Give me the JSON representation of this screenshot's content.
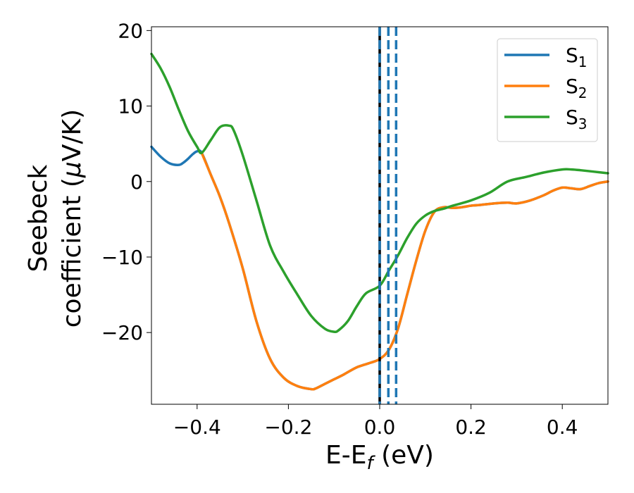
{
  "chart_data": {
    "type": "line",
    "xlabel": "E-E",
    "xlabel_sub": "f",
    "xlabel_unit": " (eV)",
    "ylabel_line1": "Seebeck",
    "ylabel_line2_pre": "coefficient  (",
    "ylabel_mu": "μ",
    "ylabel_line2_post": "V/K)",
    "xlim": [
      -0.5,
      0.5
    ],
    "ylim": [
      -29.5,
      20.5
    ],
    "xticks": [
      {
        "value": -0.4,
        "label": "−0.4"
      },
      {
        "value": -0.2,
        "label": "−0.2"
      },
      {
        "value": 0.0,
        "label": "0.0"
      },
      {
        "value": 0.2,
        "label": "0.2"
      },
      {
        "value": 0.4,
        "label": "0.4"
      }
    ],
    "yticks": [
      {
        "value": 20,
        "label": "20"
      },
      {
        "value": 10,
        "label": "10"
      },
      {
        "value": 0,
        "label": "0"
      },
      {
        "value": -10,
        "label": "−10"
      },
      {
        "value": -20,
        "label": "−20"
      }
    ],
    "legend_position": "top-right",
    "grid": false,
    "series": [
      {
        "name": "S",
        "sub": "1",
        "color": "#1f77b4",
        "x": [
          -0.5,
          -0.48,
          -0.46,
          -0.44,
          -0.43,
          -0.42,
          -0.41,
          -0.4,
          -0.39,
          -0.37,
          -0.35,
          -0.33,
          -0.3,
          -0.27,
          -0.24,
          -0.21,
          -0.18,
          -0.15,
          -0.14,
          -0.12,
          -0.1,
          -0.08,
          -0.05,
          -0.02,
          0.0,
          0.02,
          0.04,
          0.06,
          0.08,
          0.1,
          0.12,
          0.14,
          0.16,
          0.18,
          0.2,
          0.22,
          0.25,
          0.28,
          0.3,
          0.33,
          0.36,
          0.38,
          0.4,
          0.42,
          0.44,
          0.46,
          0.48,
          0.5
        ],
        "y": [
          4.6,
          3.3,
          2.4,
          2.2,
          2.5,
          3.0,
          3.6,
          4.0,
          3.8,
          0.9,
          -2.0,
          -5.5,
          -11.5,
          -18.5,
          -23.5,
          -26.0,
          -27.1,
          -27.5,
          -27.4,
          -26.8,
          -26.2,
          -25.6,
          -24.6,
          -24.0,
          -23.5,
          -22.3,
          -19.5,
          -15.0,
          -10.5,
          -6.5,
          -4.0,
          -3.4,
          -3.5,
          -3.4,
          -3.2,
          -3.1,
          -2.9,
          -2.8,
          -2.9,
          -2.5,
          -1.8,
          -1.2,
          -0.8,
          -0.9,
          -1.0,
          -0.6,
          -0.2,
          0.0
        ]
      },
      {
        "name": "S",
        "sub": "2",
        "color": "#ff7f0e",
        "x": [
          -0.39,
          -0.37,
          -0.35,
          -0.33,
          -0.3,
          -0.27,
          -0.24,
          -0.21,
          -0.18,
          -0.15,
          -0.14,
          -0.12,
          -0.1,
          -0.08,
          -0.05,
          -0.02,
          0.0,
          0.02,
          0.04,
          0.06,
          0.08,
          0.1,
          0.12,
          0.14,
          0.16,
          0.18,
          0.2,
          0.22,
          0.25,
          0.28,
          0.3,
          0.33,
          0.36,
          0.38,
          0.4,
          0.42,
          0.44,
          0.46,
          0.48,
          0.5
        ],
        "y": [
          3.8,
          0.9,
          -2.0,
          -5.5,
          -11.5,
          -18.5,
          -23.5,
          -26.0,
          -27.1,
          -27.5,
          -27.4,
          -26.8,
          -26.2,
          -25.6,
          -24.6,
          -24.0,
          -23.5,
          -22.3,
          -19.5,
          -15.0,
          -10.5,
          -6.5,
          -4.0,
          -3.4,
          -3.5,
          -3.4,
          -3.2,
          -3.1,
          -2.9,
          -2.8,
          -2.9,
          -2.5,
          -1.8,
          -1.2,
          -0.8,
          -0.9,
          -1.0,
          -0.6,
          -0.2,
          0.0
        ]
      },
      {
        "name": "S",
        "sub": "3",
        "color": "#2ca02c",
        "x": [
          -0.5,
          -0.48,
          -0.46,
          -0.44,
          -0.42,
          -0.4,
          -0.39,
          -0.37,
          -0.35,
          -0.33,
          -0.32,
          -0.3,
          -0.27,
          -0.24,
          -0.21,
          -0.18,
          -0.15,
          -0.12,
          -0.1,
          -0.09,
          -0.07,
          -0.05,
          -0.03,
          0.0,
          0.02,
          0.04,
          0.06,
          0.08,
          0.1,
          0.12,
          0.14,
          0.16,
          0.2,
          0.24,
          0.28,
          0.32,
          0.36,
          0.4,
          0.42,
          0.44,
          0.47,
          0.5
        ],
        "y": [
          16.9,
          15.0,
          12.5,
          9.5,
          6.7,
          4.6,
          3.8,
          5.5,
          7.2,
          7.4,
          6.8,
          3.5,
          -2.5,
          -8.5,
          -12.0,
          -15.0,
          -17.8,
          -19.5,
          -19.9,
          -19.7,
          -18.5,
          -16.5,
          -14.8,
          -13.8,
          -11.8,
          -9.8,
          -7.5,
          -5.6,
          -4.5,
          -3.9,
          -3.6,
          -3.2,
          -2.5,
          -1.5,
          0.0,
          0.6,
          1.2,
          1.6,
          1.6,
          1.5,
          1.3,
          1.1
        ]
      }
    ],
    "reference_lines": [
      {
        "x": 0.0,
        "color": "#000000",
        "style": "solid"
      },
      {
        "x": 0.0,
        "color": "#1f77b4",
        "style": "dashed"
      },
      {
        "x": 0.019,
        "color": "#1f77b4",
        "style": "dashed"
      },
      {
        "x": 0.036,
        "color": "#1f77b4",
        "style": "dashed"
      }
    ]
  }
}
